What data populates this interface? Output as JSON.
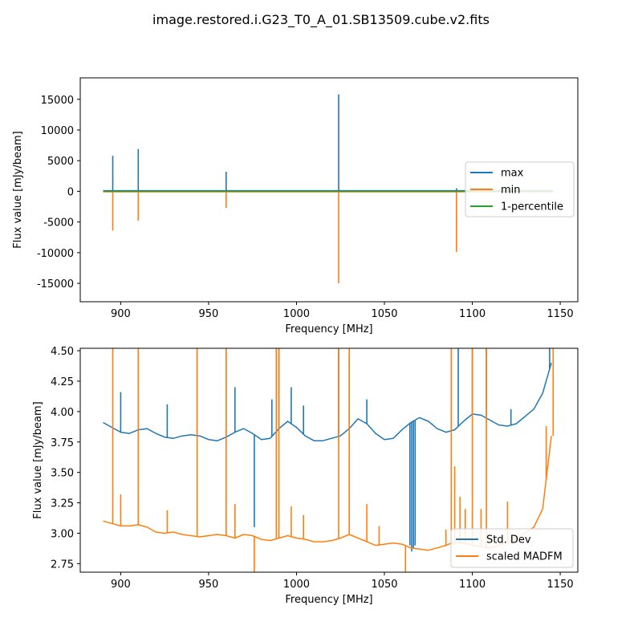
{
  "figure": {
    "suptitle": "image.restored.i.G23_T0_A_01.SB13509.cube.v2.fits"
  },
  "chart_data": [
    {
      "type": "line",
      "xlabel": "Frequency [MHz]",
      "ylabel": "Flux value [mJy/beam]",
      "xlim": [
        877,
        1160
      ],
      "ylim": [
        -18000,
        18500
      ],
      "xticks": [
        900,
        950,
        1000,
        1050,
        1100,
        1150
      ],
      "yticks": [
        -15000,
        -10000,
        -5000,
        0,
        5000,
        10000,
        15000
      ],
      "legend_position": "center-right",
      "series": [
        {
          "name": "max",
          "color": "#1f77b4",
          "baseline": {
            "x": [
              890,
              1146
            ],
            "y": [
              100,
              100
            ]
          },
          "spikes": [
            {
              "x": 895.5,
              "y": 5800
            },
            {
              "x": 910,
              "y": 6900
            },
            {
              "x": 960,
              "y": 3200
            },
            {
              "x": 1024,
              "y": 15800
            },
            {
              "x": 1091,
              "y": 500
            }
          ]
        },
        {
          "name": "min",
          "color": "#ff7f0e",
          "baseline": {
            "x": [
              890,
              1146
            ],
            "y": [
              -80,
              -80
            ]
          },
          "spikes": [
            {
              "x": 895.5,
              "y": -6400
            },
            {
              "x": 910,
              "y": -4800
            },
            {
              "x": 960,
              "y": -2700
            },
            {
              "x": 1024,
              "y": -15000
            },
            {
              "x": 1091,
              "y": -9900
            }
          ]
        },
        {
          "name": "1-percentile",
          "color": "#2ca02c",
          "baseline": {
            "x": [
              890,
              1146
            ],
            "y": [
              0,
              0
            ]
          },
          "spikes": []
        }
      ]
    },
    {
      "type": "line",
      "xlabel": "Frequency [MHz]",
      "ylabel": "Flux value [mJy/beam]",
      "xlim": [
        877,
        1160
      ],
      "ylim": [
        2.68,
        4.52
      ],
      "xticks": [
        900,
        950,
        1000,
        1050,
        1100,
        1150
      ],
      "yticks": [
        2.75,
        3.0,
        3.25,
        3.5,
        3.75,
        4.0,
        4.25,
        4.5
      ],
      "yticklabels": [
        "2.75",
        "3.00",
        "3.25",
        "3.50",
        "3.75",
        "4.00",
        "4.25",
        "4.50"
      ],
      "legend_position": "lower-right",
      "series": [
        {
          "name": "Std. Dev",
          "color": "#1f77b4",
          "baseline": {
            "x": [
              890,
              895,
              900,
              905,
              910,
              915,
              920,
              925,
              930,
              935,
              940,
              945,
              950,
              955,
              960,
              965,
              970,
              975,
              980,
              985,
              990,
              995,
              1000,
              1005,
              1010,
              1015,
              1020,
              1025,
              1030,
              1035,
              1040,
              1045,
              1050,
              1055,
              1060,
              1065,
              1070,
              1075,
              1080,
              1085,
              1090,
              1095,
              1100,
              1105,
              1110,
              1115,
              1120,
              1125,
              1130,
              1135,
              1140,
              1145
            ],
            "y": [
              3.91,
              3.87,
              3.83,
              3.82,
              3.85,
              3.86,
              3.82,
              3.79,
              3.78,
              3.8,
              3.81,
              3.8,
              3.77,
              3.76,
              3.79,
              3.83,
              3.86,
              3.82,
              3.77,
              3.78,
              3.86,
              3.92,
              3.87,
              3.8,
              3.76,
              3.76,
              3.78,
              3.8,
              3.86,
              3.94,
              3.9,
              3.82,
              3.77,
              3.78,
              3.85,
              3.91,
              3.95,
              3.92,
              3.86,
              3.83,
              3.85,
              3.92,
              3.98,
              3.97,
              3.93,
              3.89,
              3.88,
              3.9,
              3.96,
              4.02,
              4.15,
              4.4
            ]
          },
          "spikes": [
            {
              "x": 900,
              "y": 4.16
            },
            {
              "x": 926.5,
              "y": 4.06
            },
            {
              "x": 943.5,
              "y": 4.55
            },
            {
              "x": 960,
              "y": 4.55
            },
            {
              "x": 965,
              "y": 4.2
            },
            {
              "x": 976,
              "y": 3.05
            },
            {
              "x": 986,
              "y": 4.1
            },
            {
              "x": 988.5,
              "y": 4.55
            },
            {
              "x": 990,
              "y": 4.55
            },
            {
              "x": 997,
              "y": 4.2
            },
            {
              "x": 1004,
              "y": 4.05
            },
            {
              "x": 1024,
              "y": 4.55
            },
            {
              "x": 1030,
              "y": 4.45
            },
            {
              "x": 1040,
              "y": 4.1
            },
            {
              "x": 1064.5,
              "y": 2.9
            },
            {
              "x": 1065.5,
              "y": 2.85
            },
            {
              "x": 1066.5,
              "y": 2.88
            },
            {
              "x": 1067.5,
              "y": 2.9
            },
            {
              "x": 1088,
              "y": 4.55
            },
            {
              "x": 1092,
              "y": 4.55
            },
            {
              "x": 1100,
              "y": 4.55
            },
            {
              "x": 1108,
              "y": 4.55
            },
            {
              "x": 1122,
              "y": 4.02
            },
            {
              "x": 1144,
              "y": 4.55
            }
          ]
        },
        {
          "name": "scaled MADFM",
          "color": "#ff7f0e",
          "baseline": {
            "x": [
              890,
              895,
              900,
              905,
              910,
              915,
              920,
              925,
              930,
              935,
              940,
              945,
              950,
              955,
              960,
              965,
              970,
              975,
              980,
              985,
              990,
              995,
              1000,
              1005,
              1010,
              1015,
              1020,
              1025,
              1030,
              1035,
              1040,
              1045,
              1050,
              1055,
              1060,
              1065,
              1070,
              1075,
              1080,
              1085,
              1090,
              1095,
              1100,
              1105,
              1110,
              1115,
              1120,
              1125,
              1130,
              1135,
              1140,
              1145
            ],
            "y": [
              3.1,
              3.08,
              3.06,
              3.06,
              3.07,
              3.05,
              3.01,
              3.0,
              3.01,
              2.99,
              2.98,
              2.97,
              2.98,
              2.99,
              2.98,
              2.96,
              2.99,
              2.98,
              2.95,
              2.94,
              2.96,
              2.98,
              2.96,
              2.95,
              2.93,
              2.93,
              2.94,
              2.96,
              2.99,
              2.96,
              2.93,
              2.9,
              2.91,
              2.92,
              2.91,
              2.88,
              2.87,
              2.86,
              2.88,
              2.9,
              2.93,
              2.92,
              2.9,
              2.89,
              2.88,
              2.9,
              2.93,
              2.96,
              3.0,
              3.05,
              3.2,
              3.8
            ]
          },
          "spikes": [
            {
              "x": 895.5,
              "y": 4.55
            },
            {
              "x": 900,
              "y": 3.32
            },
            {
              "x": 910,
              "y": 4.55
            },
            {
              "x": 926.5,
              "y": 3.19
            },
            {
              "x": 943.5,
              "y": 4.55
            },
            {
              "x": 960,
              "y": 4.55
            },
            {
              "x": 965,
              "y": 3.24
            },
            {
              "x": 976,
              "y": 2.55
            },
            {
              "x": 988.5,
              "y": 4.55
            },
            {
              "x": 990,
              "y": 4.55
            },
            {
              "x": 997,
              "y": 3.22
            },
            {
              "x": 1004,
              "y": 3.15
            },
            {
              "x": 1024,
              "y": 4.55
            },
            {
              "x": 1030,
              "y": 4.55
            },
            {
              "x": 1040,
              "y": 3.24
            },
            {
              "x": 1047,
              "y": 3.06
            },
            {
              "x": 1062,
              "y": 2.68
            },
            {
              "x": 1085,
              "y": 3.03
            },
            {
              "x": 1088,
              "y": 4.55
            },
            {
              "x": 1090,
              "y": 3.55
            },
            {
              "x": 1093,
              "y": 3.3
            },
            {
              "x": 1096,
              "y": 3.2
            },
            {
              "x": 1100,
              "y": 4.55
            },
            {
              "x": 1105,
              "y": 3.2
            },
            {
              "x": 1108,
              "y": 4.55
            },
            {
              "x": 1120,
              "y": 3.26
            },
            {
              "x": 1142,
              "y": 3.88
            },
            {
              "x": 1146,
              "y": 4.55
            }
          ]
        }
      ]
    }
  ]
}
